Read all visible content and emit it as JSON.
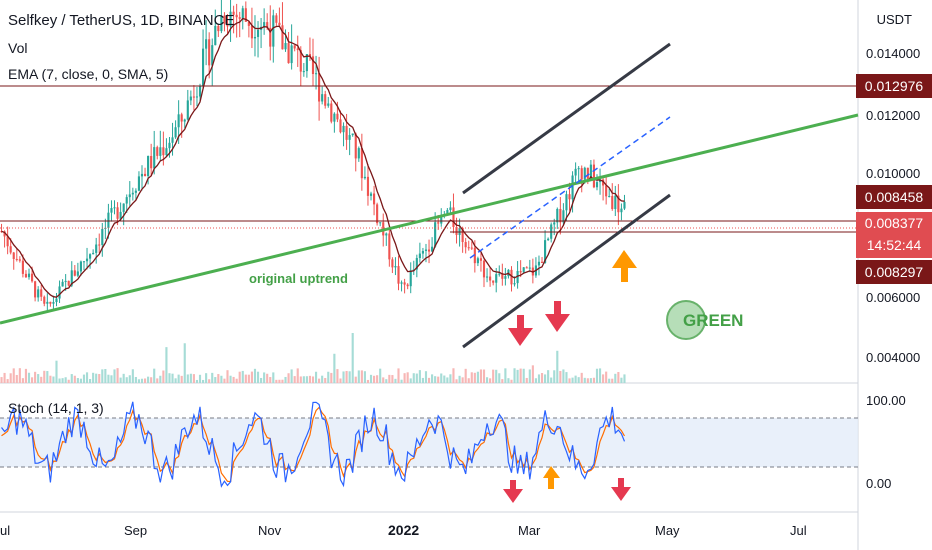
{
  "header": {
    "title": "Selfkey / TetherUS, 1D, BINANCE",
    "vol": "Vol",
    "ema": "EMA (7, close, 0, SMA, 5)",
    "stoch": "Stoch (14, 1, 3)"
  },
  "axis": {
    "currency": "USDT",
    "price_ticks": [
      "0.014000",
      "0.012000",
      "0.010000",
      "0.006000",
      "0.004000"
    ],
    "stoch_ticks": [
      "100.00",
      "0.00"
    ],
    "time_ticks": [
      "ul",
      "Sep",
      "Nov",
      "2022",
      "Mar",
      "May",
      "Jul"
    ]
  },
  "price_tags": {
    "high": "0.012976",
    "upper": "0.008458",
    "current": "0.008377",
    "countdown": "14:52:44",
    "lower": "0.008297"
  },
  "annotations": {
    "original_uptrend": "original uptrend",
    "green": "GREEN"
  },
  "colors": {
    "up": "#26a69a",
    "down": "#ef5350",
    "ema": "#7a1718",
    "trendline": "#4caf50",
    "channel": "#363a45",
    "arrow_down": "#e53950",
    "arrow_up": "#ff9800",
    "stoch_k": "#2962ff",
    "stoch_d": "#ff6d00"
  },
  "chart_data": [
    {
      "type": "candlestick",
      "title": "Selfkey / TetherUS, 1D, BINANCE",
      "ylabel": "USDT",
      "ylim": [
        0.0032,
        0.0148
      ],
      "x_ticks": [
        "ul",
        "Sep",
        "Nov",
        "2022",
        "Mar",
        "May",
        "Jul"
      ],
      "series": [
        {
          "name": "Selfkey / TetherUS, 1D, BINANCE",
          "approx_close_path": [
            {
              "x": "Jul",
              "y": 0.0078
            },
            {
              "x": "late Jul",
              "y": 0.0054
            },
            {
              "x": "Aug",
              "y": 0.0072
            },
            {
              "x": "Sep",
              "y": 0.0093
            },
            {
              "x": "Oct",
              "y": 0.011
            },
            {
              "x": "early Nov",
              "y": 0.0145
            },
            {
              "x": "mid Nov",
              "y": 0.014
            },
            {
              "x": "Dec",
              "y": 0.0125
            },
            {
              "x": "2022",
              "y": 0.0101
            },
            {
              "x": "mid Jan",
              "y": 0.006
            },
            {
              "x": "Feb",
              "y": 0.0084
            },
            {
              "x": "late Feb",
              "y": 0.0063
            },
            {
              "x": "Mar",
              "y": 0.0066
            },
            {
              "x": "late Mar",
              "y": 0.0098
            },
            {
              "x": "Apr",
              "y": 0.0084
            }
          ]
        },
        {
          "name": "EMA (7, close, 0, SMA, 5)"
        }
      ],
      "levels": {
        "high": 0.012976,
        "upper": 0.008458,
        "current": 0.008377,
        "lower": 0.008297
      }
    },
    {
      "type": "line",
      "title": "Stoch (14, 1, 3)",
      "ylim": [
        0,
        100
      ],
      "guides": [
        80,
        20
      ]
    }
  ]
}
